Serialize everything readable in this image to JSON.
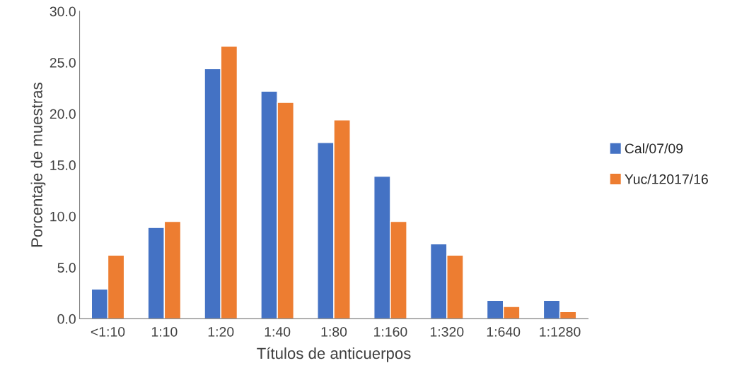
{
  "chart_data": {
    "type": "bar",
    "xlabel": "Títulos de anticuerpos",
    "ylabel": "Porcentaje de muestras",
    "categories": [
      "<1:10",
      "1:10",
      "1:20",
      "1:40",
      "1:80",
      "1:160",
      "1:320",
      "1:640",
      "1:1280"
    ],
    "series": [
      {
        "name": "Cal/07/09",
        "color": "#4472c4",
        "values": [
          2.9,
          8.9,
          24.4,
          22.2,
          17.2,
          13.9,
          7.3,
          1.8,
          1.8
        ]
      },
      {
        "name": "Yuc/12017/16",
        "color": "#ed7d31",
        "values": [
          6.2,
          9.5,
          26.6,
          21.1,
          19.4,
          9.5,
          6.2,
          1.2,
          0.7
        ]
      }
    ],
    "ylim": [
      0,
      30
    ],
    "yticks": [
      {
        "value": 0,
        "label": "0.0"
      },
      {
        "value": 5,
        "label": "5.0"
      },
      {
        "value": 10,
        "label": "10.0"
      },
      {
        "value": 15,
        "label": "15.0"
      },
      {
        "value": 20,
        "label": "20.0"
      },
      {
        "value": 25,
        "label": "25.0"
      },
      {
        "value": 30,
        "label": "30.0"
      }
    ],
    "grid": false,
    "legend": "right"
  }
}
